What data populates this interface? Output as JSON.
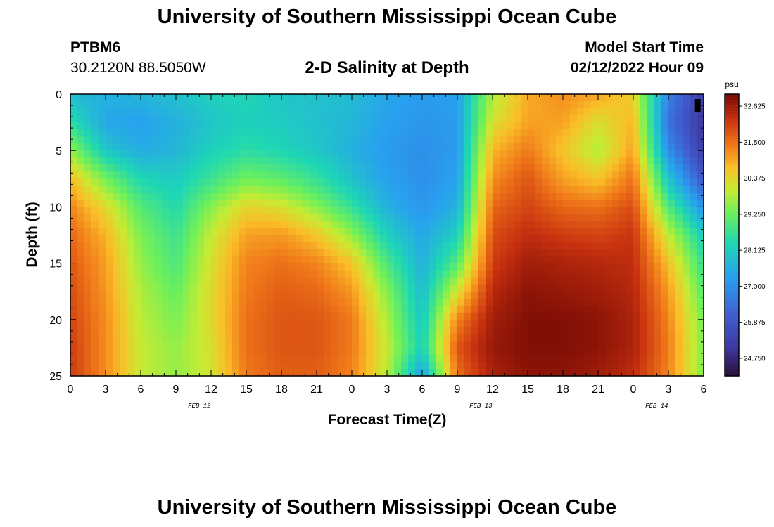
{
  "header": {
    "title": "University of Southern Mississippi Ocean Cube",
    "station_id": "PTBM6",
    "coordinates": "30.2120N  88.5050W",
    "subtitle": "2-D Salinity at Depth",
    "model_start_label": "Model Start Time",
    "model_start_value": "02/12/2022 Hour 09"
  },
  "footer": {
    "title": "University of Southern Mississippi Ocean Cube"
  },
  "chart_data": {
    "type": "heatmap",
    "title": "2-D Salinity at Depth",
    "xlabel": "Forecast Time(Z)",
    "ylabel": "Depth (ft)",
    "x_range_hours": [
      0,
      54
    ],
    "y_range_ft": [
      0,
      25
    ],
    "x_tick_labels": [
      "0",
      "3",
      "6",
      "9",
      "12",
      "15",
      "18",
      "21",
      "0",
      "3",
      "6",
      "9",
      "12",
      "15",
      "18",
      "21",
      "0",
      "3",
      "6"
    ],
    "y_tick_labels": [
      "0",
      "5",
      "10",
      "15",
      "20",
      "25"
    ],
    "date_labels": [
      {
        "text": "FEB 12",
        "hour": 11
      },
      {
        "text": "FEB 13",
        "hour": 35
      },
      {
        "text": "FEB 14",
        "hour": 50
      }
    ],
    "colorbar": {
      "unit_label": "psu",
      "min": 24.2,
      "max": 33.0,
      "tick_labels": [
        "32.625",
        "31.500",
        "30.375",
        "29.250",
        "28.125",
        "27.000",
        "25.875",
        "24.750"
      ]
    },
    "grid": {
      "description": "Salinity (psu) sampled every 3 forecast hours (columns, hour 0..54) at depths 0,2.5,...,25 ft (rows).",
      "hours": [
        0,
        3,
        6,
        9,
        12,
        15,
        18,
        21,
        24,
        27,
        30,
        33,
        36,
        39,
        42,
        45,
        48,
        51,
        54
      ],
      "depths_ft": [
        0,
        2.5,
        5,
        7.5,
        10,
        12.5,
        15,
        17.5,
        20,
        22.5,
        25
      ],
      "values": [
        [
          27.8,
          27.6,
          27.7,
          27.9,
          28.2,
          28.3,
          28.0,
          27.9,
          27.8,
          27.4,
          27.2,
          27.3,
          29.8,
          30.9,
          31.2,
          31.0,
          30.4,
          26.8,
          25.2
        ],
        [
          28.5,
          27.4,
          27.3,
          27.6,
          28.0,
          28.2,
          28.1,
          27.9,
          27.7,
          27.3,
          27.1,
          27.2,
          30.2,
          31.0,
          31.0,
          30.2,
          30.8,
          26.5,
          25.0
        ],
        [
          29.6,
          28.0,
          27.5,
          27.7,
          28.2,
          28.5,
          28.3,
          28.0,
          27.6,
          27.2,
          27.0,
          27.2,
          30.8,
          31.4,
          30.6,
          29.8,
          31.0,
          27.0,
          25.2
        ],
        [
          30.7,
          29.3,
          28.3,
          28.1,
          28.7,
          29.3,
          29.1,
          28.6,
          27.9,
          27.3,
          27.0,
          27.3,
          31.2,
          31.8,
          31.0,
          30.6,
          31.5,
          28.0,
          25.8
        ],
        [
          31.3,
          30.3,
          29.0,
          28.4,
          29.5,
          30.4,
          30.2,
          29.5,
          28.6,
          27.6,
          27.1,
          27.6,
          31.6,
          32.0,
          31.6,
          31.5,
          31.9,
          29.0,
          27.0
        ],
        [
          31.6,
          30.8,
          29.4,
          28.7,
          30.0,
          31.0,
          31.1,
          30.6,
          29.6,
          28.2,
          27.4,
          28.2,
          31.9,
          32.3,
          32.1,
          32.0,
          32.2,
          30.0,
          28.1
        ],
        [
          31.8,
          31.0,
          29.6,
          28.9,
          30.2,
          31.3,
          31.5,
          31.3,
          30.6,
          28.9,
          27.6,
          29.0,
          32.1,
          32.6,
          32.5,
          32.4,
          32.3,
          30.7,
          28.6
        ],
        [
          31.9,
          31.1,
          29.8,
          29.2,
          30.3,
          31.4,
          31.7,
          31.6,
          31.1,
          29.5,
          27.8,
          30.2,
          32.4,
          32.8,
          32.7,
          32.6,
          32.4,
          31.1,
          29.0
        ],
        [
          32.0,
          31.2,
          29.9,
          29.4,
          30.3,
          31.5,
          31.8,
          31.8,
          31.4,
          29.8,
          28.0,
          31.3,
          32.6,
          32.9,
          32.9,
          32.8,
          32.5,
          31.3,
          29.3
        ],
        [
          32.1,
          31.2,
          30.0,
          29.6,
          30.2,
          31.5,
          31.8,
          31.8,
          31.4,
          30.0,
          28.2,
          31.8,
          32.7,
          32.9,
          32.9,
          32.8,
          32.5,
          31.4,
          29.4
        ],
        [
          32.1,
          31.2,
          30.0,
          29.6,
          30.1,
          31.4,
          31.7,
          31.7,
          31.3,
          29.9,
          27.2,
          31.5,
          32.5,
          32.8,
          32.8,
          32.6,
          32.3,
          31.3,
          29.4
        ]
      ]
    },
    "min_marker": {
      "hour": 53.5,
      "depth_ft": 1
    }
  }
}
